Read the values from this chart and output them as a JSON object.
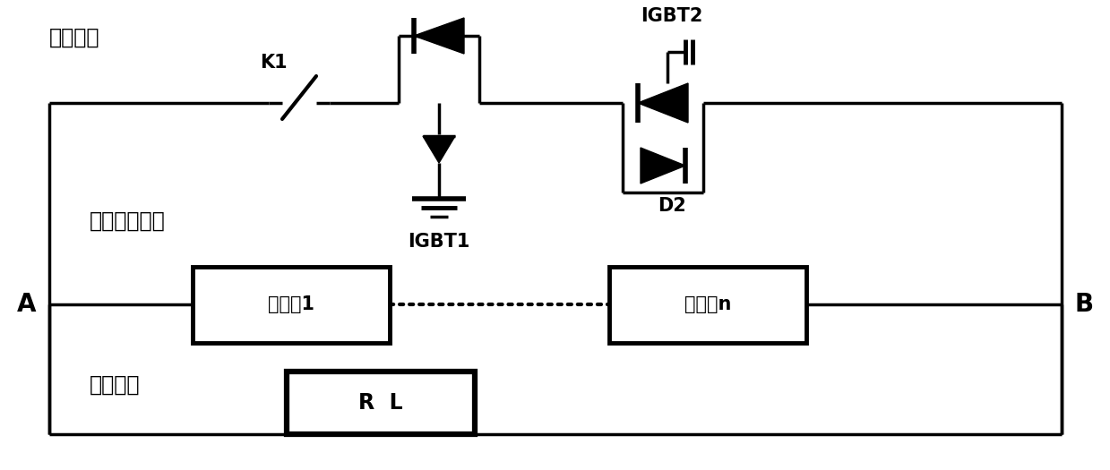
{
  "fig_width": 12.39,
  "fig_height": 5.25,
  "dpi": 100,
  "line_color": "black",
  "line_width": 2.5,
  "bg_color": "white",
  "labels": {
    "tongliu": "通流支路",
    "K1": "K1",
    "IGBT1": "IGBT1",
    "IGBT2": "IGBT2",
    "D2": "D2",
    "dianliu": "电流转移支路",
    "A": "A",
    "B": "B",
    "submodule1": "子模块1",
    "submoduleN": "子模块n",
    "xianliu": "限流支路",
    "RL": "R  L"
  },
  "font_size_label": 17,
  "font_size_component": 15,
  "font_size_AB": 20
}
